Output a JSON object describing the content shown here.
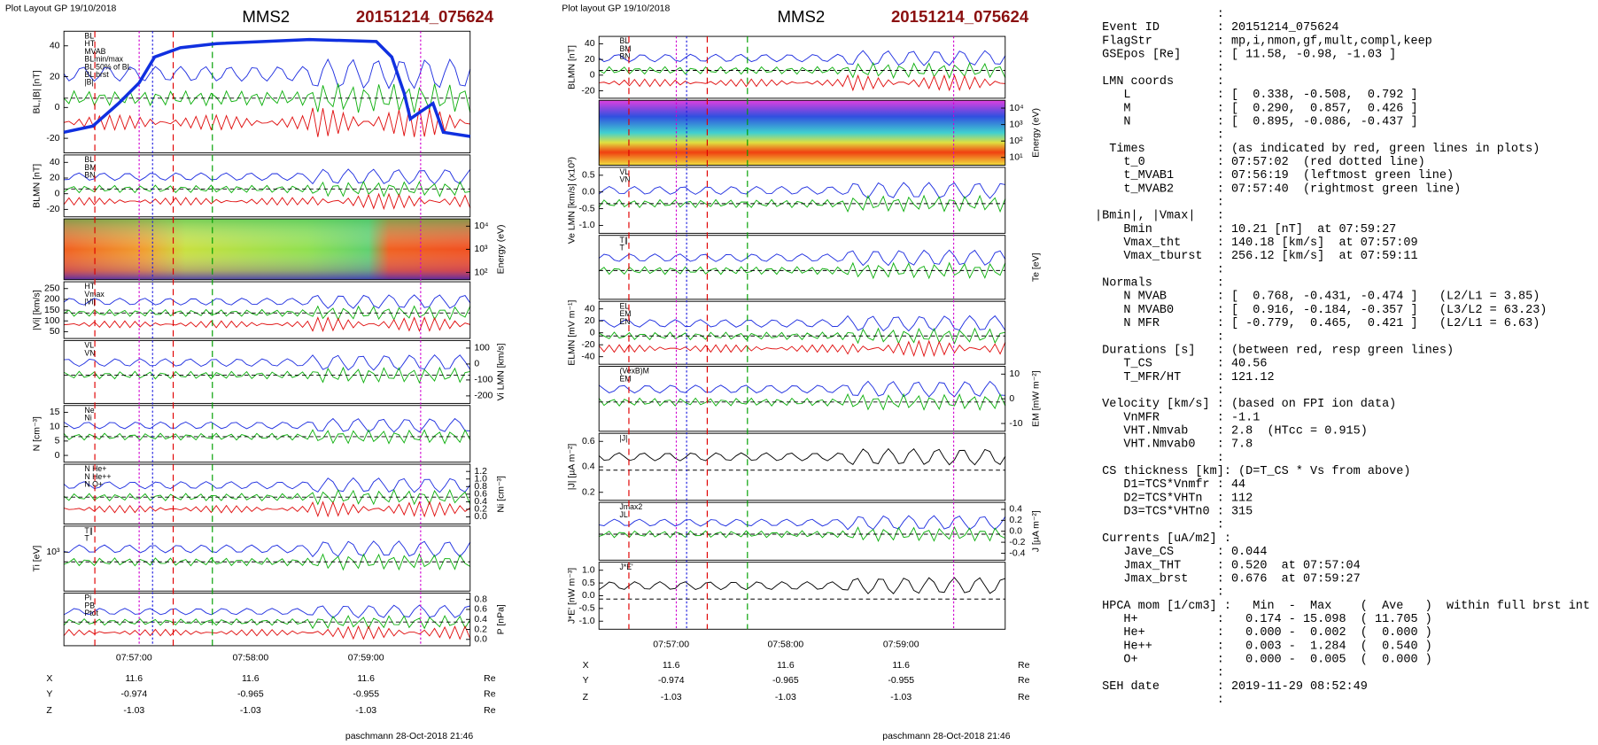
{
  "left_plot": {
    "header": "Plot Layout GP 19/10/2018",
    "title": "MMS2",
    "event": "20151214_075624",
    "panels": [
      {
        "ylabel": "BL,|B| [nT]",
        "ticks": [
          "40",
          "20",
          "0",
          "-20"
        ],
        "legend": [
          "BL",
          "HT",
          "MVAB",
          "BLmin/max",
          "BL 50% of BL",
          "BL brst",
          "|B|"
        ]
      },
      {
        "ylabel": "BLMN [nT]",
        "ticks": [
          "40",
          "20",
          "0",
          "-20"
        ],
        "legend": [
          "BL",
          "BM",
          "BN"
        ]
      },
      {
        "ylabel": "Energy (eV)",
        "ticks": [
          "10⁴",
          "10³",
          "10²"
        ],
        "legend": []
      },
      {
        "ylabel": "|Vi| [km/s]",
        "ticks": [
          "250",
          "200",
          "150",
          "100",
          "50"
        ],
        "legend": [
          "HT",
          "Vmax",
          "|Vi|"
        ]
      },
      {
        "ylabel": "Vi LMN [km/s]",
        "ticks": [
          "100",
          "0",
          "-100",
          "-200"
        ],
        "legend": [
          "VL",
          "VN"
        ]
      },
      {
        "ylabel": "N [cm⁻³]",
        "ticks": [
          "15",
          "10",
          "5",
          "0"
        ],
        "legend": [
          "Ne",
          "Ni"
        ]
      },
      {
        "ylabel": "Ni [cm⁻³]",
        "ticks": [
          "1.2",
          "1.0",
          "0.8",
          "0.6",
          "0.4",
          "0.2",
          "0.0"
        ],
        "legend": [
          "N He+",
          "N He++",
          "N O+"
        ]
      },
      {
        "ylabel": "Ti [eV]",
        "ticks": [
          "10³"
        ],
        "legend": [
          "T∥",
          "T"
        ]
      },
      {
        "ylabel": "P [nPa]",
        "ticks": [
          "0.8",
          "0.6",
          "0.4",
          "0.2",
          "0.0"
        ],
        "legend": [
          "Pi",
          "PB",
          "Ptot"
        ]
      }
    ],
    "times": [
      "07:57:00",
      "07:58:00",
      "07:59:00"
    ],
    "ephemeris": [
      [
        "X",
        "11.6",
        "11.6",
        "11.6",
        "Re"
      ],
      [
        "Y",
        "-0.974",
        "-0.965",
        "-0.955",
        "Re"
      ],
      [
        "Z",
        "-1.03",
        "-1.03",
        "-1.03",
        "Re"
      ]
    ],
    "footer": "paschmann 28-Oct-2018 21:46"
  },
  "right_plot": {
    "header": "Plot layout GP 19/10/2018",
    "title": "MMS2",
    "event": "20151214_075624",
    "panels": [
      {
        "ylabel": "BLMN [nT]",
        "ticks": [
          "40",
          "20",
          "0",
          "-20"
        ],
        "legend": [
          "BL",
          "BM",
          "BN"
        ]
      },
      {
        "ylabel": "Energy (eV)",
        "ticks": [
          "10⁴",
          "10³",
          "10²",
          "10¹"
        ],
        "legend": []
      },
      {
        "ylabel": "Ve LMN [km/s] (x10³)",
        "ticks": [
          "0.5",
          "0.0",
          "-0.5",
          "-1.0"
        ],
        "legend": [
          "VL",
          "VN"
        ]
      },
      {
        "ylabel": "Te [eV]",
        "ticks": [],
        "legend": [
          "T∥",
          "T"
        ]
      },
      {
        "ylabel": "ELMN [mV m⁻¹]",
        "ticks": [
          "40",
          "20",
          "0",
          "-20",
          "-40"
        ],
        "legend": [
          "EL",
          "EM",
          "EN"
        ]
      },
      {
        "ylabel": "EM [mW m⁻²]",
        "ticks": [
          "10",
          "0",
          "-10"
        ],
        "legend": [
          "(VexB)M",
          "EM"
        ]
      },
      {
        "ylabel": "|J| [µA m⁻²]",
        "ticks": [
          "0.6",
          "0.4",
          "0.2"
        ],
        "legend": [
          "|J|"
        ]
      },
      {
        "ylabel": "J [µA m⁻²]",
        "ticks": [
          "0.4",
          "0.2",
          "0.0",
          "-0.2",
          "-0.4"
        ],
        "legend": [
          "Jmax2",
          "JL"
        ]
      },
      {
        "ylabel": "J*E' [nW m⁻³]",
        "ticks": [
          "1.0",
          "0.5",
          "0.0",
          "-0.5",
          "-1.0"
        ],
        "legend": [
          "J*E'"
        ]
      }
    ],
    "times": [
      "07:57:00",
      "07:58:00",
      "07:59:00"
    ],
    "ephemeris": [
      [
        "X",
        "11.6",
        "11.6",
        "11.6",
        "Re"
      ],
      [
        "Y",
        "-0.974",
        "-0.965",
        "-0.955",
        "Re"
      ],
      [
        "Z",
        "-1.03",
        "-1.03",
        "-1.03",
        "Re"
      ]
    ],
    "footer": "paschmann 28-Oct-2018 21:46"
  },
  "info": [
    "                 :",
    " Event ID        : 20151214_075624",
    " FlagStr         : mp,i,nmon,gf,mult,compl,keep",
    " GSEpos [Re]     : [ 11.58, -0.98, -1.03 ]",
    "                 :",
    " LMN coords      :",
    "    L            : [  0.338, -0.508,  0.792 ]",
    "    M            : [  0.290,  0.857,  0.426 ]",
    "    N            : [  0.895, -0.086, -0.437 ]",
    "                 :",
    "  Times          : (as indicated by red, green lines in plots)",
    "    t_0          : 07:57:02  (red dotted line)",
    "    t_MVAB1      : 07:56:19  (leftmost green line)",
    "    t_MVAB2      : 07:57:40  (rightmost green line)",
    "                 :",
    "|Bmin|, |Vmax|   :",
    "    Bmin         : 10.21 [nT]  at 07:59:27",
    "    Vmax_tht     : 140.18 [km/s]  at 07:57:09",
    "    Vmax_tburst  : 256.12 [km/s]  at 07:59:11",
    "                 :",
    " Normals         :",
    "    N MVAB       : [  0.768, -0.431, -0.474 ]   (L2/L1 = 3.85)",
    "    N MVAB0      : [  0.916, -0.184, -0.357 ]   (L3/L2 = 63.23)",
    "    N MFR        : [ -0.779,  0.465,  0.421 ]   (L2/L1 = 6.63)",
    "                 :",
    " Durations [s]   : (between red, resp green lines)",
    "    T_CS         : 40.56",
    "    T_MFR/HT     : 121.12",
    "                 :",
    " Velocity [km/s] : (based on FPI ion data)",
    "    VnMFR        : -1.1",
    "    VHT.Nmvab    : 2.8  (HTcc = 0.915)",
    "    VHT.Nmvab0   : 7.8",
    "                 :",
    " CS thickness [km]: (D=T_CS * Vs from above)",
    "    D1=TCS*Vnmfr : 44",
    "    D2=TCS*VHTn  : 112",
    "    D3=TCS*VHTn0 : 315",
    "                 :",
    " Currents [uA/m2] :",
    "    Jave_CS      : 0.044",
    "    Jmax_THT     : 0.520  at 07:57:04",
    "    Jmax_brst    : 0.676  at 07:59:27",
    "                 :",
    " HPCA mom [1/cm3] :   Min  -  Max    (  Ave   )  within full brst int",
    "    H+           :   0.174 - 15.098  ( 11.705 )",
    "    He+          :   0.000 -  0.002  (  0.000 )",
    "    He++         :   0.003 -  1.284  (  0.540 )",
    "    O+           :   0.000 -  0.005  (  0.000 )",
    "                 :",
    " SEH date        : 2019-11-29 08:52:49",
    "                 :"
  ]
}
